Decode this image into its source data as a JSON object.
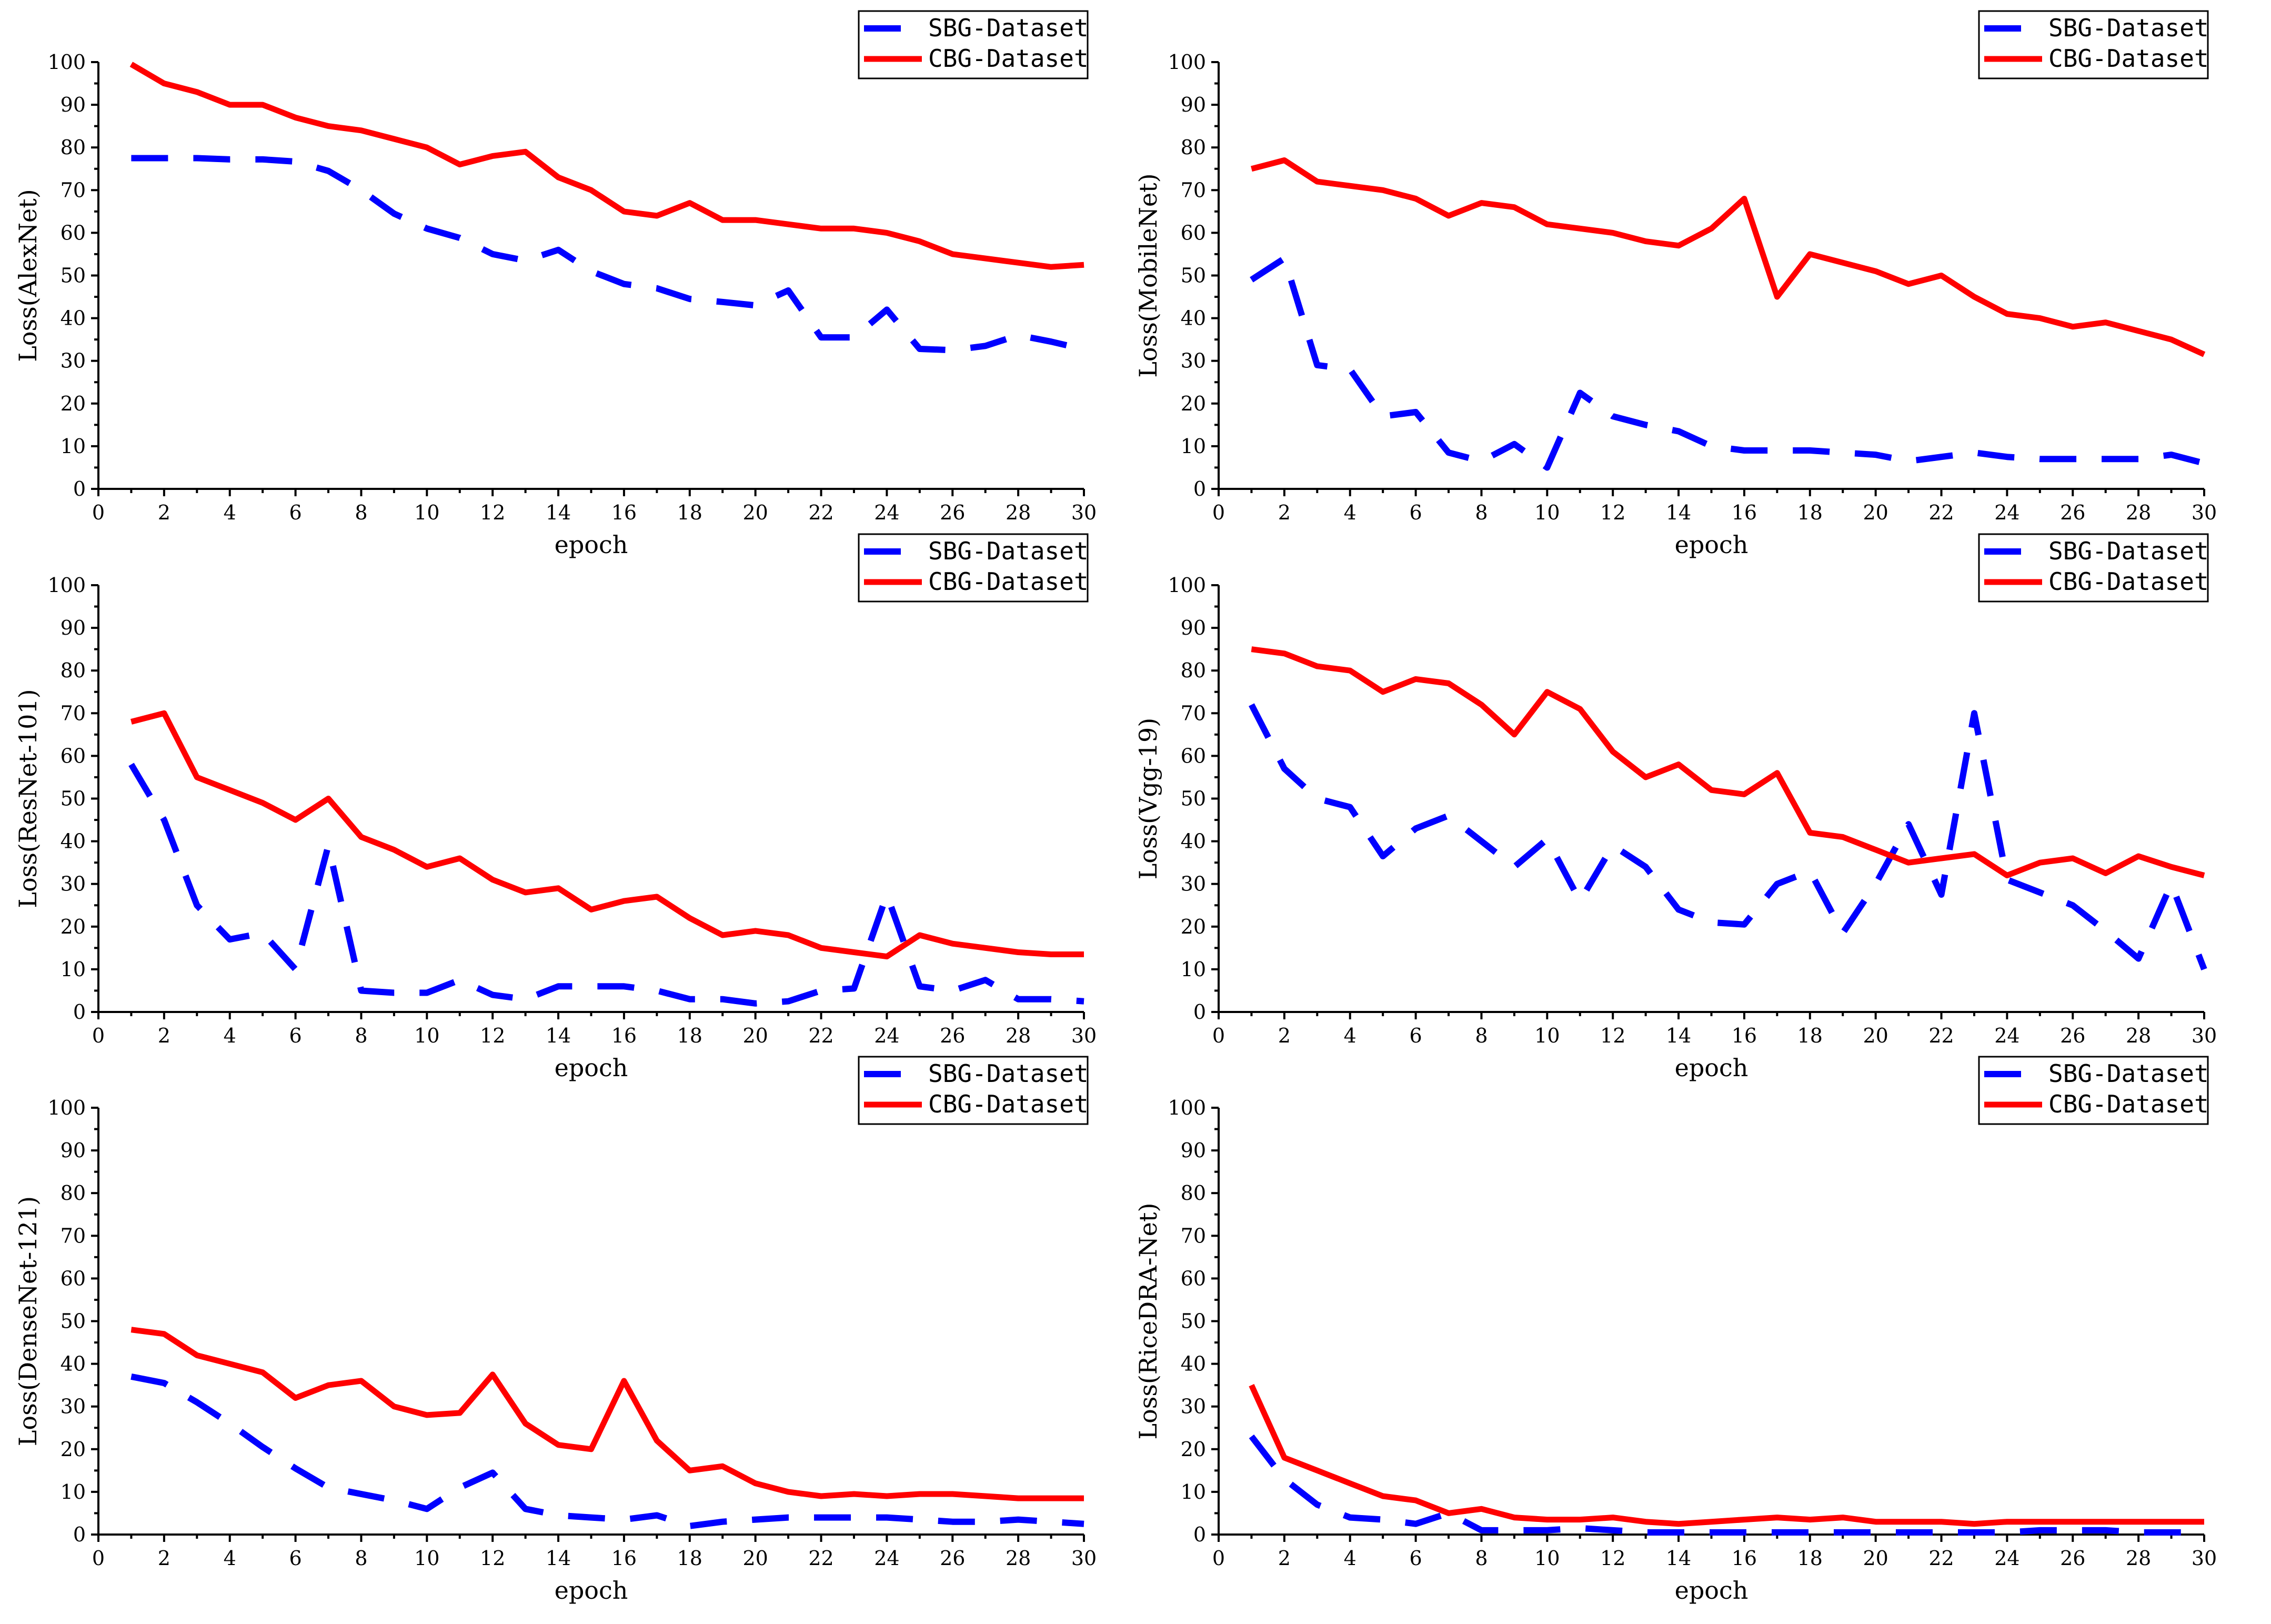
{
  "colors": {
    "sbg": "#0000ff",
    "cbg": "#ff0000"
  },
  "chart_data": [
    {
      "type": "line",
      "ylabel": "Loss(AlexNet)",
      "xlabel": "epoch",
      "xlim": [
        0,
        30
      ],
      "ylim": [
        0,
        100
      ],
      "xticks": [
        0,
        2,
        4,
        6,
        8,
        10,
        12,
        14,
        16,
        18,
        20,
        22,
        24,
        26,
        28,
        30
      ],
      "yticks": [
        0,
        10,
        20,
        30,
        40,
        50,
        60,
        70,
        80,
        90,
        100
      ],
      "legend": [
        "SBG-Dataset",
        "CBG-Dataset"
      ],
      "legend_position": "top-right",
      "x": [
        1,
        2,
        3,
        4,
        5,
        6,
        7,
        8,
        9,
        10,
        11,
        12,
        13,
        14,
        15,
        16,
        17,
        18,
        19,
        20,
        21,
        22,
        23,
        24,
        25,
        26,
        27,
        28,
        29,
        30
      ],
      "series": [
        {
          "name": "SBG-Dataset",
          "style": "dashed",
          "color": "#0000ff",
          "values": [
            77.5,
            77.5,
            77.5,
            77.2,
            77.2,
            76.7,
            74.5,
            70.0,
            64.5,
            61.0,
            58.8,
            55.0,
            53.5,
            56.0,
            51.0,
            48.0,
            47.0,
            44.5,
            43.8,
            43.0,
            46.5,
            35.5,
            35.5,
            42.0,
            32.8,
            32.5,
            33.5,
            36.0,
            34.5,
            32.7
          ]
        },
        {
          "name": "CBG-Dataset",
          "style": "solid",
          "color": "#ff0000",
          "values": [
            99.5,
            95.0,
            93.0,
            90.0,
            90.0,
            87.0,
            85.0,
            84.0,
            82.0,
            80.0,
            76.0,
            78.0,
            79.0,
            73.0,
            70.0,
            65.0,
            64.0,
            67.0,
            63.0,
            63.0,
            62.0,
            61.0,
            61.0,
            60.0,
            58.0,
            55.0,
            54.0,
            53.0,
            52.0,
            52.5
          ]
        }
      ]
    },
    {
      "type": "line",
      "ylabel": "Loss(MobileNet)",
      "xlabel": "epoch",
      "xlim": [
        0,
        30
      ],
      "ylim": [
        0,
        100
      ],
      "xticks": [
        0,
        2,
        4,
        6,
        8,
        10,
        12,
        14,
        16,
        18,
        20,
        22,
        24,
        26,
        28,
        30
      ],
      "yticks": [
        0,
        10,
        20,
        30,
        40,
        50,
        60,
        70,
        80,
        90,
        100
      ],
      "legend": [
        "SBG-Dataset",
        "CBG-Dataset"
      ],
      "legend_position": "top-right",
      "x": [
        1,
        2,
        3,
        4,
        5,
        6,
        7,
        8,
        9,
        10,
        11,
        12,
        13,
        14,
        15,
        16,
        17,
        18,
        19,
        20,
        21,
        22,
        23,
        24,
        25,
        26,
        27,
        28,
        29,
        30
      ],
      "series": [
        {
          "name": "SBG-Dataset",
          "style": "dashed",
          "color": "#0000ff",
          "values": [
            49.0,
            54.0,
            29.0,
            28.0,
            17.0,
            18.0,
            8.5,
            6.5,
            10.5,
            5.0,
            22.5,
            17.0,
            15.0,
            13.5,
            10.0,
            9.0,
            9.0,
            9.0,
            8.5,
            8.0,
            6.5,
            7.5,
            8.5,
            7.5,
            7.0,
            7.0,
            7.0,
            7.0,
            8.0,
            6.0
          ]
        },
        {
          "name": "CBG-Dataset",
          "style": "solid",
          "color": "#ff0000",
          "values": [
            75.0,
            77.0,
            72.0,
            71.0,
            70.0,
            68.0,
            64.0,
            67.0,
            66.0,
            62.0,
            61.0,
            60.0,
            58.0,
            57.0,
            61.0,
            68.0,
            45.0,
            55.0,
            53.0,
            51.0,
            48.0,
            50.0,
            45.0,
            41.0,
            40.0,
            38.0,
            39.0,
            37.0,
            35.0,
            31.5
          ]
        }
      ]
    },
    {
      "type": "line",
      "ylabel": "Loss(ResNet-101)",
      "xlabel": "epoch",
      "xlim": [
        0,
        30
      ],
      "ylim": [
        0,
        100
      ],
      "xticks": [
        0,
        2,
        4,
        6,
        8,
        10,
        12,
        14,
        16,
        18,
        20,
        22,
        24,
        26,
        28,
        30
      ],
      "yticks": [
        0,
        10,
        20,
        30,
        40,
        50,
        60,
        70,
        80,
        90,
        100
      ],
      "legend": [
        "SBG-Dataset",
        "CBG-Dataset"
      ],
      "legend_position": "top-right",
      "x": [
        1,
        2,
        3,
        4,
        5,
        6,
        7,
        8,
        9,
        10,
        11,
        12,
        13,
        14,
        15,
        16,
        17,
        18,
        19,
        20,
        21,
        22,
        23,
        24,
        25,
        26,
        27,
        28,
        29,
        30
      ],
      "series": [
        {
          "name": "SBG-Dataset",
          "style": "dashed",
          "color": "#0000ff",
          "values": [
            58.0,
            45.0,
            25.0,
            17.0,
            18.5,
            10.0,
            39.0,
            5.0,
            4.5,
            4.5,
            7.5,
            4.0,
            3.0,
            6.0,
            6.0,
            6.0,
            5.0,
            3.0,
            3.0,
            2.0,
            2.5,
            5.0,
            5.5,
            27.5,
            6.0,
            5.0,
            7.5,
            3.0,
            3.0,
            2.5
          ]
        },
        {
          "name": "CBG-Dataset",
          "style": "solid",
          "color": "#ff0000",
          "values": [
            68.0,
            70.0,
            55.0,
            52.0,
            49.0,
            45.0,
            50.0,
            41.0,
            38.0,
            34.0,
            36.0,
            31.0,
            28.0,
            29.0,
            24.0,
            26.0,
            27.0,
            22.0,
            18.0,
            19.0,
            18.0,
            15.0,
            14.0,
            13.0,
            18.0,
            16.0,
            15.0,
            14.0,
            13.5,
            13.5
          ]
        }
      ]
    },
    {
      "type": "line",
      "ylabel": "Loss(Vgg-19)",
      "xlabel": "epoch",
      "xlim": [
        0,
        30
      ],
      "ylim": [
        0,
        100
      ],
      "xticks": [
        0,
        2,
        4,
        6,
        8,
        10,
        12,
        14,
        16,
        18,
        20,
        22,
        24,
        26,
        28,
        30
      ],
      "yticks": [
        0,
        10,
        20,
        30,
        40,
        50,
        60,
        70,
        80,
        90,
        100
      ],
      "legend": [
        "SBG-Dataset",
        "CBG-Dataset"
      ],
      "legend_position": "top-right",
      "x": [
        1,
        2,
        3,
        4,
        5,
        6,
        7,
        8,
        9,
        10,
        11,
        12,
        13,
        14,
        15,
        16,
        17,
        18,
        19,
        20,
        21,
        22,
        23,
        24,
        25,
        26,
        27,
        28,
        29,
        30
      ],
      "series": [
        {
          "name": "SBG-Dataset",
          "style": "dashed",
          "color": "#0000ff",
          "values": [
            72.0,
            57.0,
            50.0,
            48.0,
            36.5,
            43.0,
            46.0,
            40.0,
            34.0,
            40.5,
            26.0,
            39.0,
            34.0,
            24.0,
            21.0,
            20.5,
            30.0,
            33.0,
            18.5,
            30.0,
            44.0,
            27.5,
            70.0,
            31.0,
            28.0,
            25.0,
            19.0,
            12.5,
            30.0,
            10.0
          ]
        },
        {
          "name": "CBG-Dataset",
          "style": "solid",
          "color": "#ff0000",
          "values": [
            85.0,
            84.0,
            81.0,
            80.0,
            75.0,
            78.0,
            77.0,
            72.0,
            65.0,
            75.0,
            71.0,
            61.0,
            55.0,
            58.0,
            52.0,
            51.0,
            56.0,
            42.0,
            41.0,
            38.0,
            35.0,
            36.0,
            37.0,
            32.0,
            35.0,
            36.0,
            32.5,
            36.5,
            34.0,
            32.0
          ]
        }
      ]
    },
    {
      "type": "line",
      "ylabel": "Loss(DenseNet-121)",
      "xlabel": "epoch",
      "xlim": [
        0,
        30
      ],
      "ylim": [
        0,
        100
      ],
      "xticks": [
        0,
        2,
        4,
        6,
        8,
        10,
        12,
        14,
        16,
        18,
        20,
        22,
        24,
        26,
        28,
        30
      ],
      "yticks": [
        0,
        10,
        20,
        30,
        40,
        50,
        60,
        70,
        80,
        90,
        100
      ],
      "legend": [
        "SBG-Dataset",
        "CBG-Dataset"
      ],
      "legend_position": "top-right",
      "x": [
        1,
        2,
        3,
        4,
        5,
        6,
        7,
        8,
        9,
        10,
        11,
        12,
        13,
        14,
        15,
        16,
        17,
        18,
        19,
        20,
        21,
        22,
        23,
        24,
        25,
        26,
        27,
        28,
        29,
        30
      ],
      "series": [
        {
          "name": "SBG-Dataset",
          "style": "dashed",
          "color": "#0000ff",
          "values": [
            37.0,
            35.5,
            31.0,
            26.0,
            20.5,
            15.5,
            11.0,
            9.5,
            8.0,
            6.0,
            11.0,
            14.5,
            6.0,
            4.5,
            4.0,
            3.5,
            4.5,
            2.0,
            3.0,
            3.5,
            4.0,
            4.0,
            4.0,
            4.0,
            3.5,
            3.0,
            3.0,
            3.5,
            3.0,
            2.5
          ]
        },
        {
          "name": "CBG-Dataset",
          "style": "solid",
          "color": "#ff0000",
          "values": [
            48.0,
            47.0,
            42.0,
            40.0,
            38.0,
            32.0,
            35.0,
            36.0,
            30.0,
            28.0,
            28.5,
            37.5,
            26.0,
            21.0,
            20.0,
            36.0,
            22.0,
            15.0,
            16.0,
            12.0,
            10.0,
            9.0,
            9.5,
            9.0,
            9.5,
            9.5,
            9.0,
            8.5,
            8.5,
            8.5
          ]
        }
      ]
    },
    {
      "type": "line",
      "ylabel": "Loss(RiceDRA-Net)",
      "xlabel": "epoch",
      "xlim": [
        0,
        30
      ],
      "ylim": [
        0,
        100
      ],
      "xticks": [
        0,
        2,
        4,
        6,
        8,
        10,
        12,
        14,
        16,
        18,
        20,
        22,
        24,
        26,
        28,
        30
      ],
      "yticks": [
        0,
        10,
        20,
        30,
        40,
        50,
        60,
        70,
        80,
        90,
        100
      ],
      "legend": [
        "SBG-Dataset",
        "CBG-Dataset"
      ],
      "legend_position": "top-right",
      "x": [
        1,
        2,
        3,
        4,
        5,
        6,
        7,
        8,
        9,
        10,
        11,
        12,
        13,
        14,
        15,
        16,
        17,
        18,
        19,
        20,
        21,
        22,
        23,
        24,
        25,
        26,
        27,
        28,
        29,
        30
      ],
      "series": [
        {
          "name": "SBG-Dataset",
          "style": "dashed",
          "color": "#0000ff",
          "values": [
            23.0,
            13.0,
            7.0,
            4.0,
            3.5,
            2.5,
            5.0,
            1.0,
            1.0,
            1.0,
            1.5,
            1.0,
            0.5,
            0.5,
            0.5,
            0.5,
            0.5,
            0.5,
            0.5,
            0.5,
            0.5,
            0.5,
            0.5,
            0.5,
            1.0,
            1.0,
            1.0,
            0.5,
            0.5,
            0.5
          ]
        },
        {
          "name": "CBG-Dataset",
          "style": "solid",
          "color": "#ff0000",
          "values": [
            35.0,
            18.0,
            15.0,
            12.0,
            9.0,
            8.0,
            5.0,
            6.0,
            4.0,
            3.5,
            3.5,
            4.0,
            3.0,
            2.5,
            3.0,
            3.5,
            4.0,
            3.5,
            4.0,
            3.0,
            3.0,
            3.0,
            2.5,
            3.0,
            3.0,
            3.0,
            3.0,
            3.0,
            3.0,
            3.0
          ]
        }
      ]
    }
  ]
}
